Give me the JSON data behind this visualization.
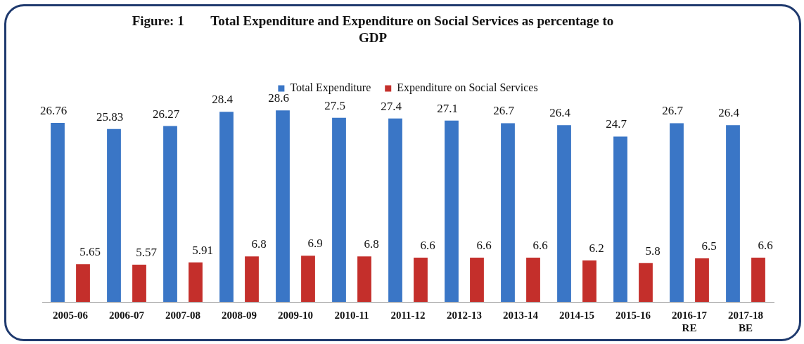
{
  "chart_data": {
    "type": "bar",
    "title": "Figure: 1        Total Expenditure and Expenditure on Social Services as percentage to GDP",
    "categories": [
      "2005-06",
      "2006-07",
      "2007-08",
      "2008-09",
      "2009-10",
      "2010-11",
      "2011-12",
      "2012-13",
      "2013-14",
      "2014-15",
      "2015-16",
      "2016-17 RE",
      "2017-18 BE"
    ],
    "series": [
      {
        "name": "Total Expenditure",
        "color": "#3a76c6",
        "values": [
          26.76,
          25.83,
          26.27,
          28.4,
          28.6,
          27.5,
          27.4,
          27.1,
          26.7,
          26.4,
          24.7,
          26.7,
          26.4
        ]
      },
      {
        "name": "Expenditure on Social Services",
        "color": "#c42f2b",
        "values": [
          5.65,
          5.57,
          5.91,
          6.8,
          6.9,
          6.8,
          6.6,
          6.6,
          6.6,
          6.2,
          5.8,
          6.5,
          6.6
        ]
      }
    ],
    "data_labels": true,
    "legend": "top",
    "grid": false
  }
}
